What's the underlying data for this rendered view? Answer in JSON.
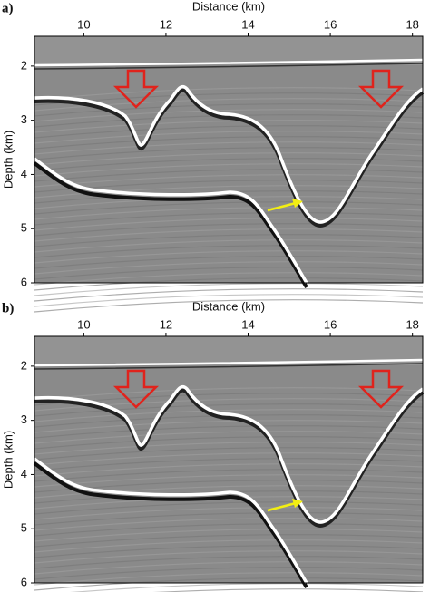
{
  "figure": {
    "panels": [
      {
        "label": "a)",
        "xlabel": "Distance (km)",
        "ylabel": "Depth (km)",
        "xlim": [
          8.8,
          18.25
        ],
        "ylim": [
          1.45,
          6
        ],
        "xticks": [
          10,
          12,
          14,
          16,
          18
        ],
        "yticks": [
          2,
          3,
          4,
          5,
          6
        ]
      },
      {
        "label": "b)",
        "xlabel": "Distance (km)",
        "ylabel": "Depth (km)",
        "xlim": [
          8.8,
          18.25
        ],
        "ylim": [
          1.45,
          6
        ],
        "xticks": [
          10,
          12,
          14,
          16,
          18
        ],
        "yticks": [
          2,
          3,
          4,
          5,
          6
        ]
      }
    ]
  }
}
